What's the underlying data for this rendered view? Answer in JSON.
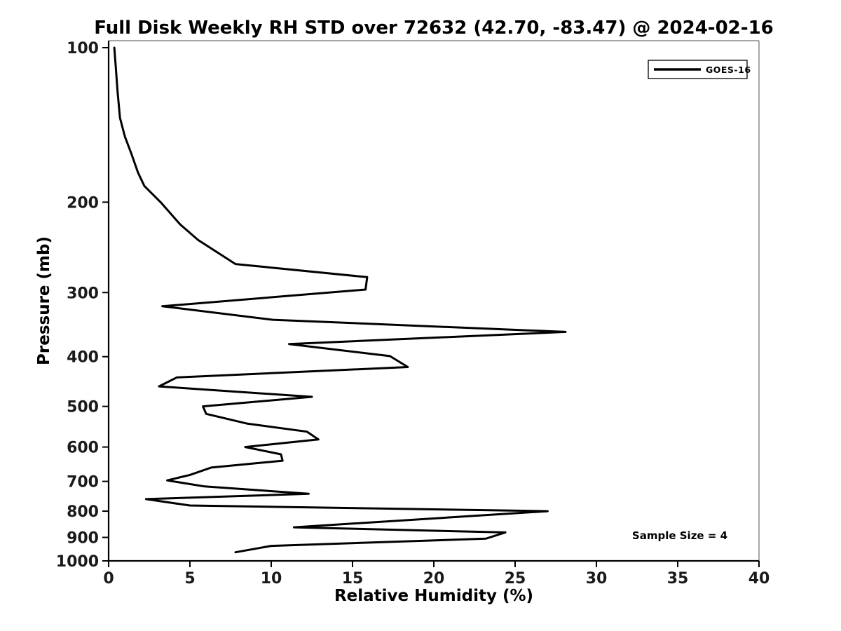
{
  "title": "Full Disk Weekly RH STD over 72632 (42.70, -83.47) @ 2024-02-16",
  "annotation": "Sample Size = 4",
  "legend": {
    "label": "GOES-16",
    "line_color": "#000000"
  },
  "colors": {
    "line": "#000000",
    "background": "#ffffff",
    "spine": "#000000"
  },
  "chart_data": {
    "type": "line",
    "title": "Full Disk Weekly RH STD over 72632 (42.70, -83.47) @ 2024-02-16",
    "xlabel": "Relative Humidity (%)",
    "ylabel": "Pressure (mb)",
    "xlim": [
      0,
      40
    ],
    "ylim": [
      1000,
      97
    ],
    "yscale": "log",
    "y_axis_inverted": true,
    "grid": false,
    "legend_position": "upper right",
    "xticks": [
      0,
      5,
      10,
      15,
      20,
      25,
      30,
      35,
      40
    ],
    "yticks": [
      100,
      200,
      300,
      400,
      500,
      600,
      700,
      800,
      900,
      1000
    ],
    "annotation": "Sample Size = 4",
    "series": [
      {
        "name": "GOES-16",
        "color": "#000000",
        "linewidth": 3,
        "points_rh_pressure": [
          [
            0.35,
            100
          ],
          [
            0.45,
            110
          ],
          [
            0.55,
            122
          ],
          [
            0.7,
            137
          ],
          [
            1.0,
            149
          ],
          [
            1.4,
            161
          ],
          [
            1.8,
            175
          ],
          [
            2.2,
            186
          ],
          [
            3.2,
            200
          ],
          [
            4.4,
            221
          ],
          [
            5.5,
            237
          ],
          [
            7.8,
            264
          ],
          [
            15.9,
            280
          ],
          [
            15.8,
            296
          ],
          [
            3.3,
            319
          ],
          [
            10.1,
            339
          ],
          [
            28.1,
            358
          ],
          [
            11.1,
            378
          ],
          [
            17.3,
            399
          ],
          [
            18.4,
            419
          ],
          [
            4.2,
            439
          ],
          [
            3.1,
            457
          ],
          [
            12.5,
            479
          ],
          [
            5.8,
            500
          ],
          [
            6.0,
            517
          ],
          [
            8.5,
            540
          ],
          [
            12.2,
            560
          ],
          [
            12.9,
            580
          ],
          [
            8.4,
            600
          ],
          [
            10.6,
            620
          ],
          [
            10.7,
            638
          ],
          [
            6.3,
            658
          ],
          [
            5.0,
            680
          ],
          [
            3.6,
            697
          ],
          [
            5.9,
            716
          ],
          [
            12.3,
            740
          ],
          [
            2.3,
            758
          ],
          [
            5.0,
            780
          ],
          [
            27.0,
            800
          ],
          [
            11.4,
            860
          ],
          [
            24.4,
            880
          ],
          [
            23.2,
            905
          ],
          [
            10.0,
            935
          ],
          [
            7.8,
            962
          ]
        ]
      }
    ]
  }
}
